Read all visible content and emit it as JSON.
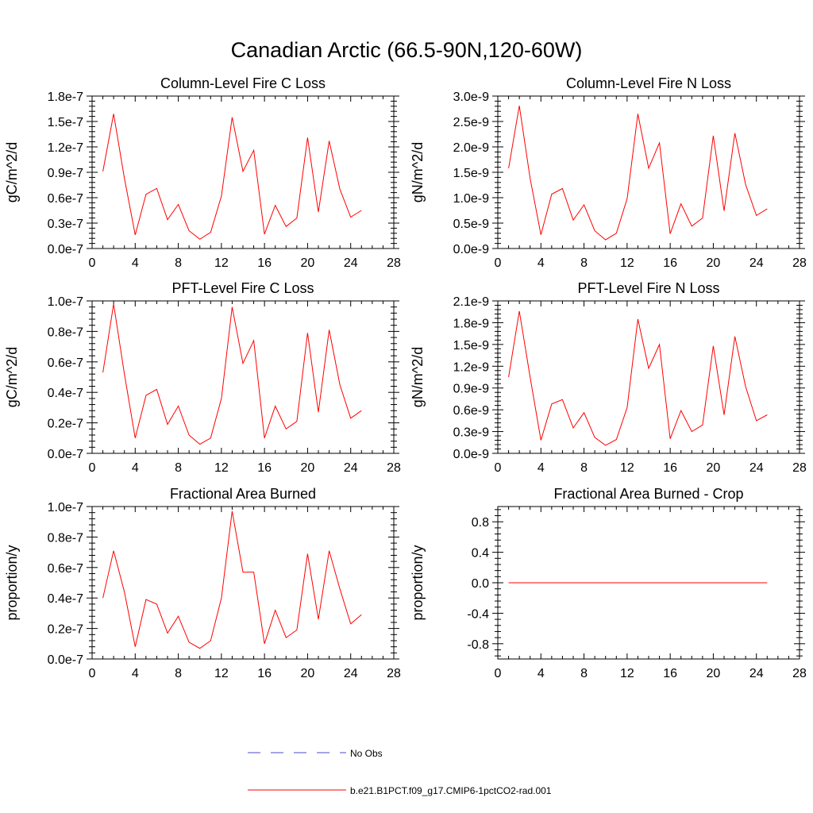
{
  "figure_title": "Canadian Arctic (66.5-90N,120-60W)",
  "colors": {
    "series": "#ff0000",
    "obs": "#4a4ad0",
    "axis": "#000000"
  },
  "legend": {
    "entries": [
      {
        "label": "No Obs",
        "style": "dashed",
        "color": "#4a4ad0"
      },
      {
        "label": "b.e21.B1PCT.f09_g17.CMIP6-1pctCO2-rad.001",
        "style": "solid",
        "color": "#ff0000"
      }
    ]
  },
  "chart_data": [
    {
      "type": "line",
      "title": "Column-Level Fire C Loss",
      "xlabel": "",
      "ylabel": "gC/m^2/d",
      "xlim": [
        0,
        28
      ],
      "ylim": [
        0,
        1.8e-07
      ],
      "x_ticks": [
        0,
        4,
        8,
        12,
        16,
        20,
        24,
        28
      ],
      "y_ticks": [
        0,
        3e-08,
        6e-08,
        9e-08,
        1.2e-07,
        1.5e-07,
        1.8e-07
      ],
      "y_tick_labels": [
        "0.0e-7",
        "0.3e-7",
        "0.6e-7",
        "0.9e-7",
        "1.2e-7",
        "1.5e-7",
        "1.8e-7"
      ],
      "x": [
        1,
        2,
        3,
        4,
        5,
        6,
        7,
        8,
        9,
        10,
        11,
        12,
        13,
        14,
        15,
        16,
        17,
        18,
        19,
        20,
        21,
        22,
        23,
        24,
        25
      ],
      "series": [
        {
          "values": [
            9.1e-08,
            1.59e-07,
            8.3e-08,
            1.6e-08,
            6.4e-08,
            7.1e-08,
            3.4e-08,
            5.2e-08,
            2.1e-08,
            1.1e-08,
            1.9e-08,
            6.2e-08,
            1.55e-07,
            9.1e-08,
            1.16e-07,
            1.7e-08,
            5.1e-08,
            2.6e-08,
            3.6e-08,
            1.31e-07,
            4.3e-08,
            1.27e-07,
            7e-08,
            3.7e-08,
            4.5e-08
          ]
        }
      ]
    },
    {
      "type": "line",
      "title": "Column-Level Fire N Loss",
      "xlabel": "",
      "ylabel": "gN/m^2/d",
      "xlim": [
        0,
        28
      ],
      "ylim": [
        0,
        3e-09
      ],
      "x_ticks": [
        0,
        4,
        8,
        12,
        16,
        20,
        24,
        28
      ],
      "y_ticks": [
        0,
        5e-10,
        1e-09,
        1.5e-09,
        2e-09,
        2.5e-09,
        3e-09
      ],
      "y_tick_labels": [
        "0.0e-9",
        "0.5e-9",
        "1.0e-9",
        "1.5e-9",
        "2.0e-9",
        "2.5e-9",
        "3.0e-9"
      ],
      "x": [
        1,
        2,
        3,
        4,
        5,
        6,
        7,
        8,
        9,
        10,
        11,
        12,
        13,
        14,
        15,
        16,
        17,
        18,
        19,
        20,
        21,
        22,
        23,
        24,
        25
      ],
      "series": [
        {
          "values": [
            1.58e-09,
            2.81e-09,
            1.38e-09,
            2.7e-10,
            1.07e-09,
            1.18e-09,
            5.6e-10,
            8.6e-10,
            3.5e-10,
            1.7e-10,
            3e-10,
            9.8e-10,
            2.65e-09,
            1.58e-09,
            2.08e-09,
            2.9e-10,
            8.8e-10,
            4.4e-10,
            6e-10,
            2.22e-09,
            7.4e-10,
            2.27e-09,
            1.26e-09,
            6.5e-10,
            7.8e-10
          ]
        }
      ]
    },
    {
      "type": "line",
      "title": "PFT-Level Fire C Loss",
      "xlabel": "",
      "ylabel": "gC/m^2/d",
      "xlim": [
        0,
        28
      ],
      "ylim": [
        0,
        1e-07
      ],
      "x_ticks": [
        0,
        4,
        8,
        12,
        16,
        20,
        24,
        28
      ],
      "y_ticks": [
        0,
        2e-08,
        4e-08,
        6e-08,
        8e-08,
        1e-07
      ],
      "y_tick_labels": [
        "0.0e-7",
        "0.2e-7",
        "0.4e-7",
        "0.6e-7",
        "0.8e-7",
        "1.0e-7"
      ],
      "x": [
        1,
        2,
        3,
        4,
        5,
        6,
        7,
        8,
        9,
        10,
        11,
        12,
        13,
        14,
        15,
        16,
        17,
        18,
        19,
        20,
        21,
        22,
        23,
        24,
        25
      ],
      "series": [
        {
          "values": [
            5.3e-08,
            9.8e-08,
            5.2e-08,
            1e-08,
            3.8e-08,
            4.2e-08,
            1.9e-08,
            3.1e-08,
            1.2e-08,
            6e-09,
            1e-08,
            3.6e-08,
            9.6e-08,
            5.9e-08,
            7.4e-08,
            1e-08,
            3.1e-08,
            1.6e-08,
            2.1e-08,
            7.9e-08,
            2.7e-08,
            8.1e-08,
            4.5e-08,
            2.3e-08,
            2.8e-08
          ]
        }
      ]
    },
    {
      "type": "line",
      "title": "PFT-Level Fire N Loss",
      "xlabel": "",
      "ylabel": "gN/m^2/d",
      "xlim": [
        0,
        28
      ],
      "ylim": [
        0,
        2.1e-09
      ],
      "x_ticks": [
        0,
        4,
        8,
        12,
        16,
        20,
        24,
        28
      ],
      "y_ticks": [
        0,
        3e-10,
        6e-10,
        9e-10,
        1.2e-09,
        1.5e-09,
        1.8e-09,
        2.1e-09
      ],
      "y_tick_labels": [
        "0.0e-9",
        "0.3e-9",
        "0.6e-9",
        "0.9e-9",
        "1.2e-9",
        "1.5e-9",
        "1.8e-9",
        "2.1e-9"
      ],
      "x": [
        1,
        2,
        3,
        4,
        5,
        6,
        7,
        8,
        9,
        10,
        11,
        12,
        13,
        14,
        15,
        16,
        17,
        18,
        19,
        20,
        21,
        22,
        23,
        24,
        25
      ],
      "series": [
        {
          "values": [
            1.05e-09,
            1.96e-09,
            1.05e-09,
            1.8e-10,
            6.8e-10,
            7.4e-10,
            3.5e-10,
            5.6e-10,
            2.2e-10,
            1.1e-10,
            1.9e-10,
            6.3e-10,
            1.85e-09,
            1.17e-09,
            1.5e-09,
            2e-10,
            5.9e-10,
            3e-10,
            3.9e-10,
            1.48e-09,
            5.3e-10,
            1.61e-09,
            9.2e-10,
            4.5e-10,
            5.3e-10
          ]
        }
      ]
    },
    {
      "type": "line",
      "title": "Fractional Area Burned",
      "xlabel": "",
      "ylabel": "proportion/y",
      "xlim": [
        0,
        28
      ],
      "ylim": [
        0,
        1e-07
      ],
      "x_ticks": [
        0,
        4,
        8,
        12,
        16,
        20,
        24,
        28
      ],
      "y_ticks": [
        0,
        2e-08,
        4e-08,
        6e-08,
        8e-08,
        1e-07
      ],
      "y_tick_labels": [
        "0.0e-7",
        "0.2e-7",
        "0.4e-7",
        "0.6e-7",
        "0.8e-7",
        "1.0e-7"
      ],
      "x": [
        1,
        2,
        3,
        4,
        5,
        6,
        7,
        8,
        9,
        10,
        11,
        12,
        13,
        14,
        15,
        16,
        17,
        18,
        19,
        20,
        21,
        22,
        23,
        24,
        25
      ],
      "series": [
        {
          "values": [
            4e-08,
            7.1e-08,
            4.4e-08,
            8e-09,
            3.9e-08,
            3.6e-08,
            1.7e-08,
            2.8e-08,
            1.1e-08,
            7e-09,
            1.2e-08,
            4e-08,
            9.7e-08,
            5.7e-08,
            5.7e-08,
            1e-08,
            3.2e-08,
            1.4e-08,
            1.9e-08,
            6.9e-08,
            2.6e-08,
            7.1e-08,
            4.6e-08,
            2.3e-08,
            2.9e-08
          ]
        }
      ]
    },
    {
      "type": "line",
      "title": "Fractional Area Burned - Crop",
      "xlabel": "",
      "ylabel": "proportion/y",
      "xlim": [
        0,
        28
      ],
      "ylim": [
        -1.0,
        1.0
      ],
      "x_ticks": [
        0,
        4,
        8,
        12,
        16,
        20,
        24,
        28
      ],
      "y_ticks": [
        -0.8,
        -0.4,
        0.0,
        0.4,
        0.8
      ],
      "y_tick_labels": [
        "-0.8",
        "-0.4",
        "0.0",
        "0.4",
        "0.8"
      ],
      "x": [
        1,
        2,
        3,
        4,
        5,
        6,
        7,
        8,
        9,
        10,
        11,
        12,
        13,
        14,
        15,
        16,
        17,
        18,
        19,
        20,
        21,
        22,
        23,
        24,
        25
      ],
      "series": [
        {
          "values": [
            0,
            0,
            0,
            0,
            0,
            0,
            0,
            0,
            0,
            0,
            0,
            0,
            0,
            0,
            0,
            0,
            0,
            0,
            0,
            0,
            0,
            0,
            0,
            0,
            0
          ]
        }
      ]
    }
  ]
}
